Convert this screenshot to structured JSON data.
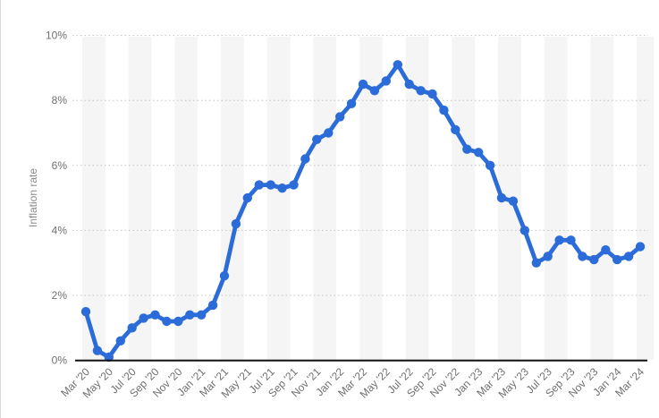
{
  "chart_data": {
    "type": "line",
    "title": "",
    "ylabel": "Inflation rate",
    "xlabel": "",
    "ylim": [
      0,
      10
    ],
    "yticks": [
      0,
      2,
      4,
      6,
      8,
      10
    ],
    "y_tick_labels": [
      "0%",
      "2%",
      "4%",
      "6%",
      "8%",
      "10%"
    ],
    "x_tick_every": 2,
    "grid": "horizontal-dotted",
    "legend": "none",
    "x": [
      "Mar '20",
      "Apr '20",
      "May '20",
      "Jun '20",
      "Jul '20",
      "Aug '20",
      "Sep '20",
      "Oct '20",
      "Nov '20",
      "Dec '20",
      "Jan '21",
      "Feb '21",
      "Mar '21",
      "Apr '21",
      "May '21",
      "Jun '21",
      "Jul '21",
      "Aug '21",
      "Sep '21",
      "Oct '21",
      "Nov '21",
      "Dec '21",
      "Jan '22",
      "Feb '22",
      "Mar '22",
      "Apr '22",
      "May '22",
      "Jun '22",
      "Jul '22",
      "Aug '22",
      "Sep '22",
      "Oct '22",
      "Nov '22",
      "Dec '22",
      "Jan '23",
      "Feb '23",
      "Mar '23",
      "Apr '23",
      "May '23",
      "Jun '23",
      "Jul '23",
      "Aug '23",
      "Sep '23",
      "Oct '23",
      "Nov '23",
      "Dec '23",
      "Jan '24",
      "Feb '24",
      "Mar '24"
    ],
    "x_tick_labels": [
      "Mar '20",
      "May '20",
      "Jul '20",
      "Sep '20",
      "Nov '20",
      "Jan '21",
      "Mar '21",
      "May '21",
      "Jul '21",
      "Sep '21",
      "Nov '21",
      "Jan '22",
      "Mar '22",
      "May '22",
      "Jul '22",
      "Sep '22",
      "Nov '22",
      "Jan '23",
      "Mar '23",
      "May '23",
      "Jul '23",
      "Sep '23",
      "Nov '23",
      "Jan '24",
      "Mar '24"
    ],
    "series": [
      {
        "name": "Inflation rate",
        "values": [
          1.5,
          0.3,
          0.1,
          0.6,
          1.0,
          1.3,
          1.4,
          1.2,
          1.2,
          1.4,
          1.4,
          1.7,
          2.6,
          4.2,
          5.0,
          5.4,
          5.4,
          5.3,
          5.4,
          6.2,
          6.8,
          7.0,
          7.5,
          7.9,
          8.5,
          8.3,
          8.6,
          9.1,
          8.5,
          8.3,
          8.2,
          7.7,
          7.1,
          6.5,
          6.4,
          6.0,
          5.0,
          4.9,
          4.0,
          3.0,
          3.2,
          3.7,
          3.7,
          3.2,
          3.1,
          3.4,
          3.1,
          3.2,
          3.5
        ]
      }
    ],
    "colors": {
      "line": "#2b6cd9",
      "marker": "#2b6cd9",
      "band": "#f5f5f5",
      "gridline": "#c4c4c4",
      "axis_line": "#111111",
      "tick_text": "#707070",
      "axis_title_text": "#8a8a8a",
      "background": "#ffffff"
    }
  }
}
